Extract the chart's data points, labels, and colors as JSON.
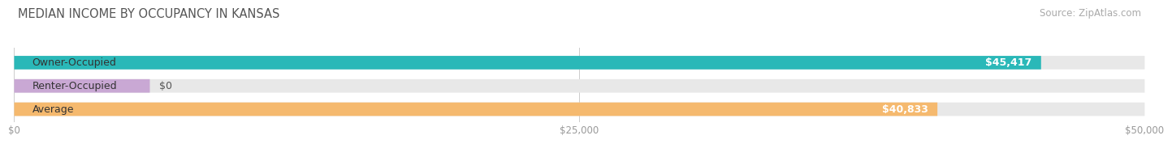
{
  "title": "MEDIAN INCOME BY OCCUPANCY IN KANSAS",
  "source": "Source: ZipAtlas.com",
  "categories": [
    "Owner-Occupied",
    "Renter-Occupied",
    "Average"
  ],
  "values": [
    45417,
    0,
    40833
  ],
  "bar_colors": [
    "#2ab8b8",
    "#c9a8d4",
    "#f5b96e"
  ],
  "bar_bg_color": "#e8e8e8",
  "value_labels": [
    "$45,417",
    "$0",
    "$40,833"
  ],
  "xlim": [
    0,
    50000
  ],
  "xticks": [
    0,
    25000,
    50000
  ],
  "xticklabels": [
    "$0",
    "$25,000",
    "$50,000"
  ],
  "title_fontsize": 10.5,
  "source_fontsize": 8.5,
  "bar_label_fontsize": 9,
  "value_label_fontsize": 9,
  "background_color": "#ffffff",
  "renter_bar_extent": 6000
}
